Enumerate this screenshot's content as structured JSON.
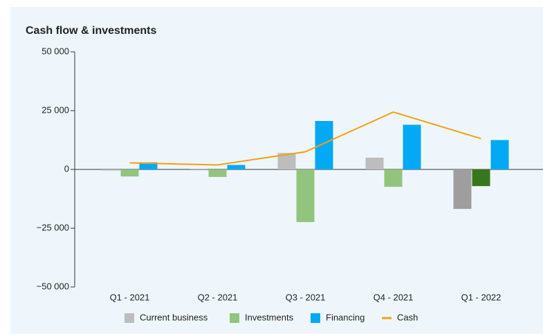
{
  "chart_data": {
    "type": "bar",
    "title": "Cash flow & investments",
    "categories": [
      "Q1 - 2021",
      "Q2 - 2021",
      "Q3 - 2021",
      "Q4 - 2021",
      "Q1 - 2022"
    ],
    "series": [
      {
        "name": "Current business",
        "color": "#bdbdbd",
        "colors": [
          "#bdbdbd",
          "#bdbdbd",
          "#bdbdbd",
          "#bdbdbd",
          "#9e9e9e"
        ],
        "values": [
          -500,
          300,
          7000,
          5000,
          -16800
        ]
      },
      {
        "name": "Investments",
        "color": "#93c47d",
        "colors": [
          "#93c47d",
          "#93c47d",
          "#93c47d",
          "#93c47d",
          "#38761d"
        ],
        "values": [
          -3000,
          -3200,
          -22400,
          -7400,
          -7100
        ]
      },
      {
        "name": "Financing",
        "color": "#03a9f4",
        "values": [
          3000,
          1900,
          20600,
          19000,
          12500
        ]
      },
      {
        "name": "Cash",
        "type": "line",
        "color": "#f5a00f",
        "values": [
          2800,
          1900,
          7500,
          24400,
          13100
        ]
      }
    ],
    "ylim": [
      -50000,
      50000
    ],
    "yticks": [
      {
        "value": 50000,
        "label": "50 000"
      },
      {
        "value": 25000,
        "label": "25 000"
      },
      0,
      {
        "value": -25000,
        "label": "−25 000"
      },
      {
        "value": -50000,
        "label": "−50 000"
      }
    ],
    "legend": "bottom"
  }
}
